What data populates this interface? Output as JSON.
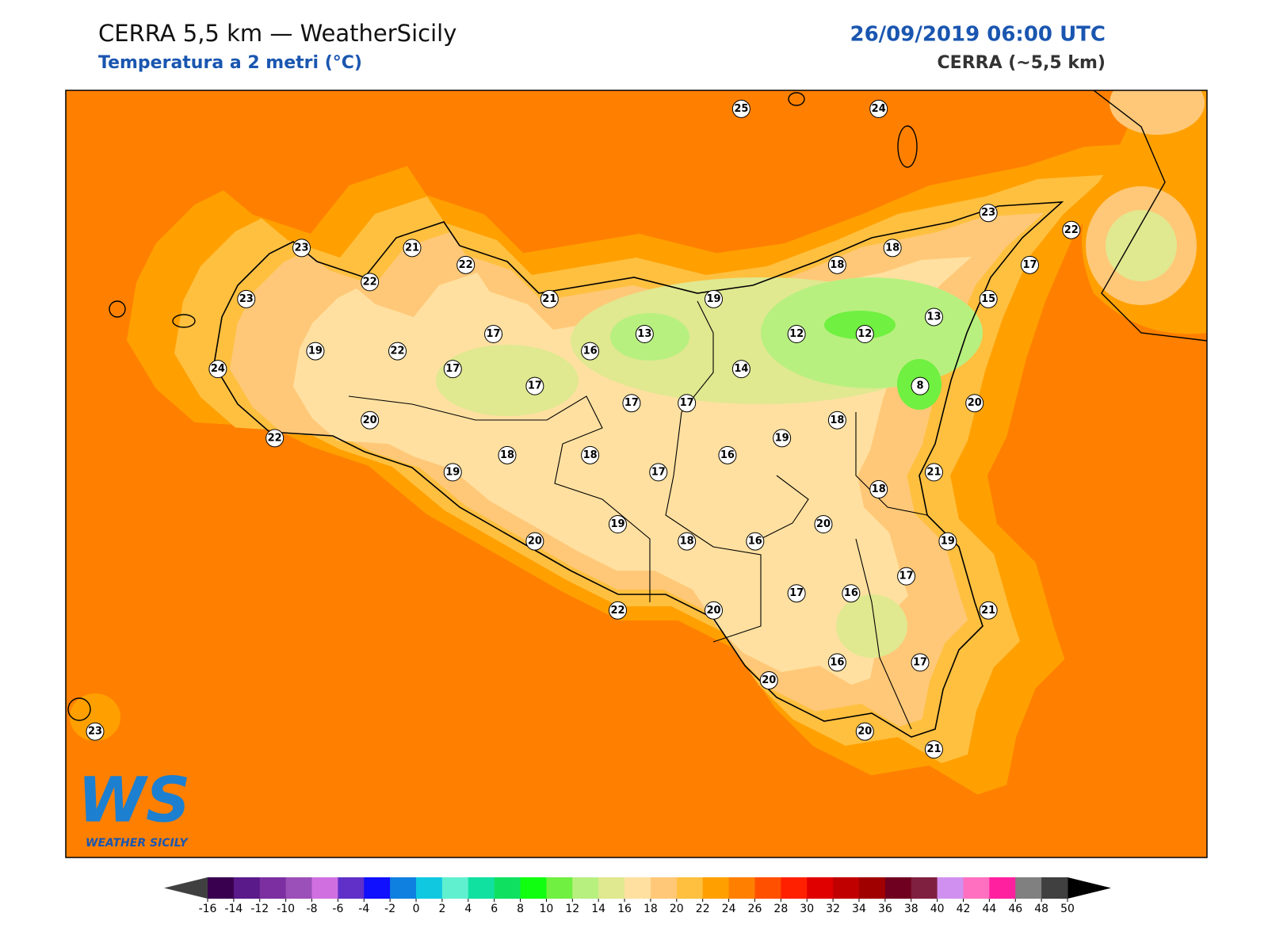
{
  "header": {
    "title": "CERRA 5,5 km — WeatherSicily",
    "subtitle": "Temperatura a 2 metri (°C)",
    "datetime": "26/09/2019 06:00 UTC",
    "model": "CERRA (~5,5 km)"
  },
  "stations": [
    25,
    24,
    23,
    22,
    23,
    21,
    22,
    22,
    23,
    21,
    19,
    18,
    18,
    17,
    15,
    13,
    12,
    12,
    13,
    17,
    19,
    22,
    16,
    24,
    17,
    17,
    14,
    8,
    17,
    17,
    20,
    20,
    18,
    22,
    19,
    18,
    18,
    16,
    19,
    17,
    21,
    18,
    20,
    19,
    20,
    18,
    16,
    19,
    17,
    17,
    16,
    22,
    20,
    21,
    16,
    17,
    20,
    20,
    21,
    23
  ],
  "colorbar": {
    "ticks": [
      -16,
      -14,
      -12,
      -10,
      -8,
      -6,
      -4,
      -2,
      0,
      2,
      4,
      6,
      8,
      10,
      12,
      14,
      16,
      18,
      20,
      22,
      24,
      26,
      28,
      30,
      32,
      34,
      36,
      38,
      40,
      42,
      44,
      46,
      48,
      50
    ],
    "colors": [
      "#3a0050",
      "#5a1a8a",
      "#7b2fa0",
      "#9b4fb8",
      "#d070e0",
      "#6030c8",
      "#1010ff",
      "#1080e0",
      "#10c8e0",
      "#60f0d0",
      "#10e0a0",
      "#10e060",
      "#10ff10",
      "#70f040",
      "#b8f080",
      "#e0e890",
      "#ffe0a0",
      "#ffc878",
      "#ffc040",
      "#ffa000",
      "#ff8000",
      "#ff5000",
      "#ff2000",
      "#e00000",
      "#c00000",
      "#a00000",
      "#700020",
      "#802040",
      "#d090f0",
      "#ff70c0",
      "#ff20a0",
      "#808080",
      "#404040"
    ],
    "under_color": "#404040",
    "over_color": "#000000"
  },
  "logo": {
    "mark": "WS",
    "name": "WEATHER SICILY"
  }
}
